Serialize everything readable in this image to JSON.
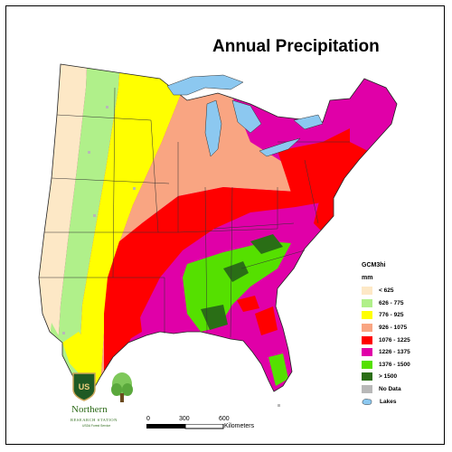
{
  "map": {
    "title": "Annual Precipitation"
  },
  "legend": {
    "title": "GCM3hi",
    "unit": "mm",
    "items": [
      {
        "label": "< 625",
        "color": "#fde8c6"
      },
      {
        "label": "626 - 775",
        "color": "#b0f08a"
      },
      {
        "label": "776 - 925",
        "color": "#ffff00"
      },
      {
        "label": "926 - 1075",
        "color": "#f9a582"
      },
      {
        "label": "1076 - 1225",
        "color": "#ff0000"
      },
      {
        "label": "1226 - 1375",
        "color": "#e000a8"
      },
      {
        "label": "1376 - 1500",
        "color": "#55e000"
      },
      {
        "label": "> 1500",
        "color": "#2a6e16"
      },
      {
        "label": "No Data",
        "color": "#b8b8b8"
      }
    ],
    "lakes_label": "Lakes",
    "lakes_color": "#8cc8f0"
  },
  "scale_bar": {
    "ticks": [
      "0",
      "300",
      "600"
    ],
    "unit": "Kilometers"
  },
  "organization": {
    "name": "Northern",
    "subtitle": "RESEARCH STATION",
    "small_text": "USDA Forest Service",
    "shield_text": "US"
  }
}
